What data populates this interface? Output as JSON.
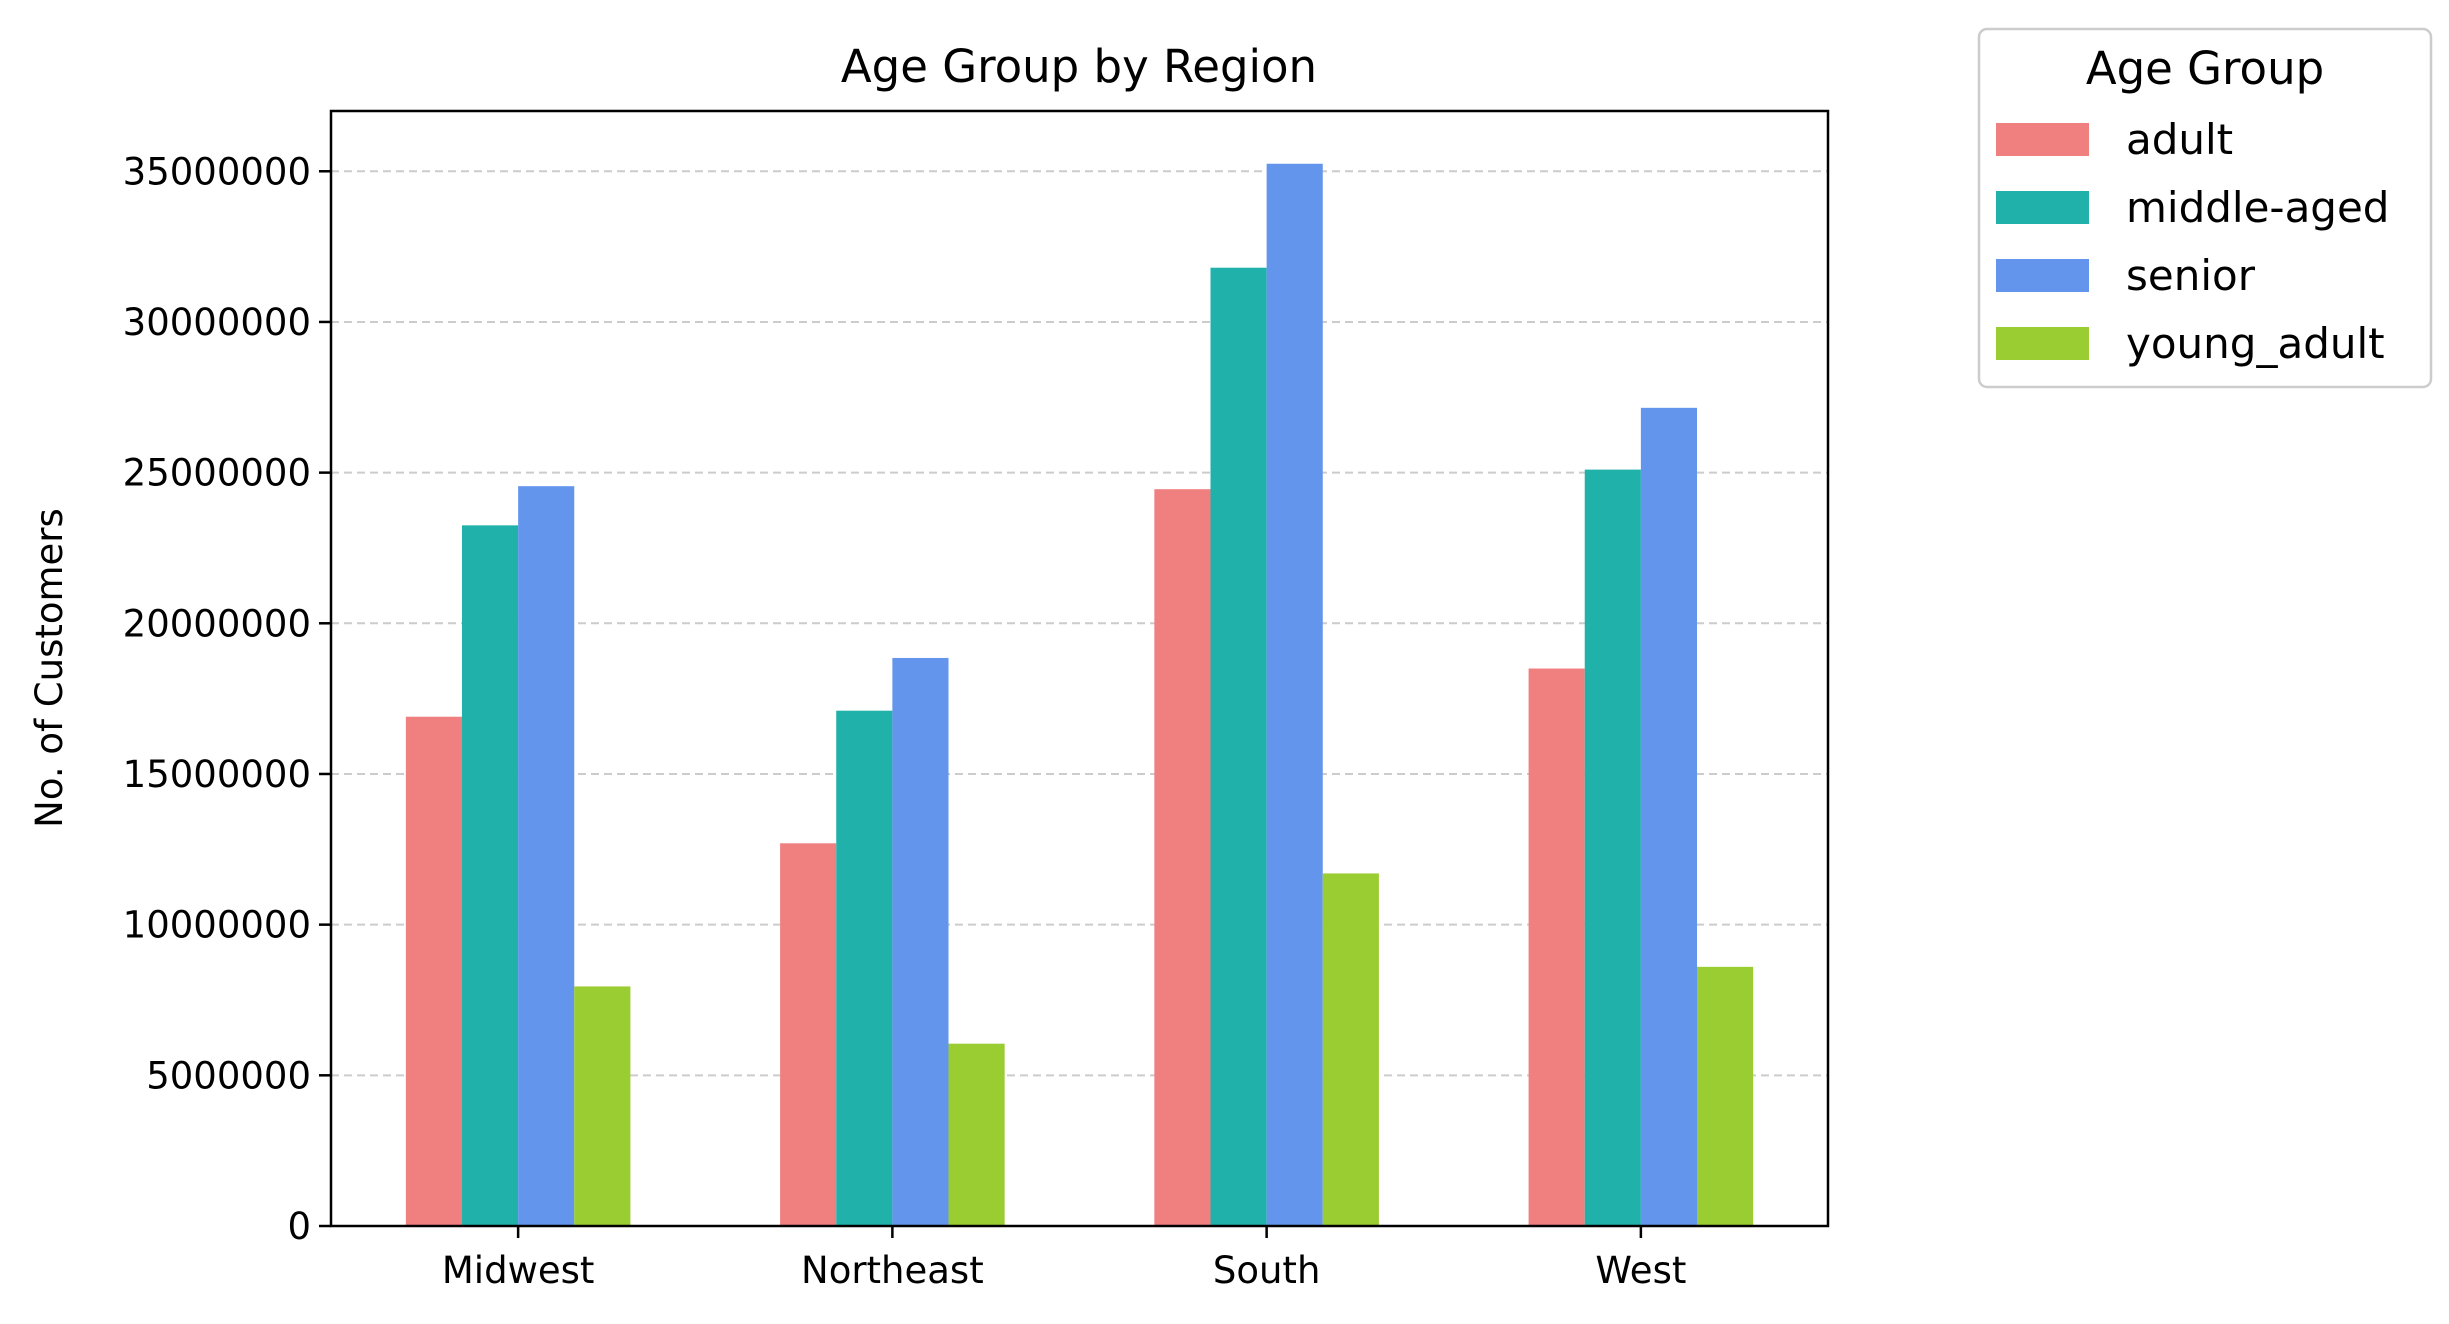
{
  "chart_data": {
    "type": "bar",
    "title": "Age Group by Region",
    "xlabel": "",
    "ylabel": "No. of Customers",
    "categories": [
      "Midwest",
      "Northeast",
      "South",
      "West"
    ],
    "series": [
      {
        "name": "adult",
        "color": "#f08080",
        "values": [
          16900000,
          12700000,
          24450000,
          18500000
        ]
      },
      {
        "name": "middle-aged",
        "color": "#20b2aa",
        "values": [
          23250000,
          17100000,
          31800000,
          25100000
        ]
      },
      {
        "name": "senior",
        "color": "#6495ed",
        "values": [
          24550000,
          18850000,
          35250000,
          27150000
        ]
      },
      {
        "name": "young_adult",
        "color": "#9acd32",
        "values": [
          7950000,
          6050000,
          11700000,
          8600000
        ]
      }
    ],
    "ylim": [
      0,
      37000000
    ],
    "yticks": [
      0,
      5000000,
      10000000,
      15000000,
      20000000,
      25000000,
      30000000,
      35000000
    ],
    "ytick_labels": [
      "0",
      "5000000",
      "10000000",
      "15000000",
      "20000000",
      "25000000",
      "30000000",
      "35000000"
    ],
    "grid": {
      "y": true,
      "style": "dashed",
      "color": "#cccccc"
    },
    "legend": {
      "title": "Age Group",
      "placement": "outside-top-right"
    }
  }
}
